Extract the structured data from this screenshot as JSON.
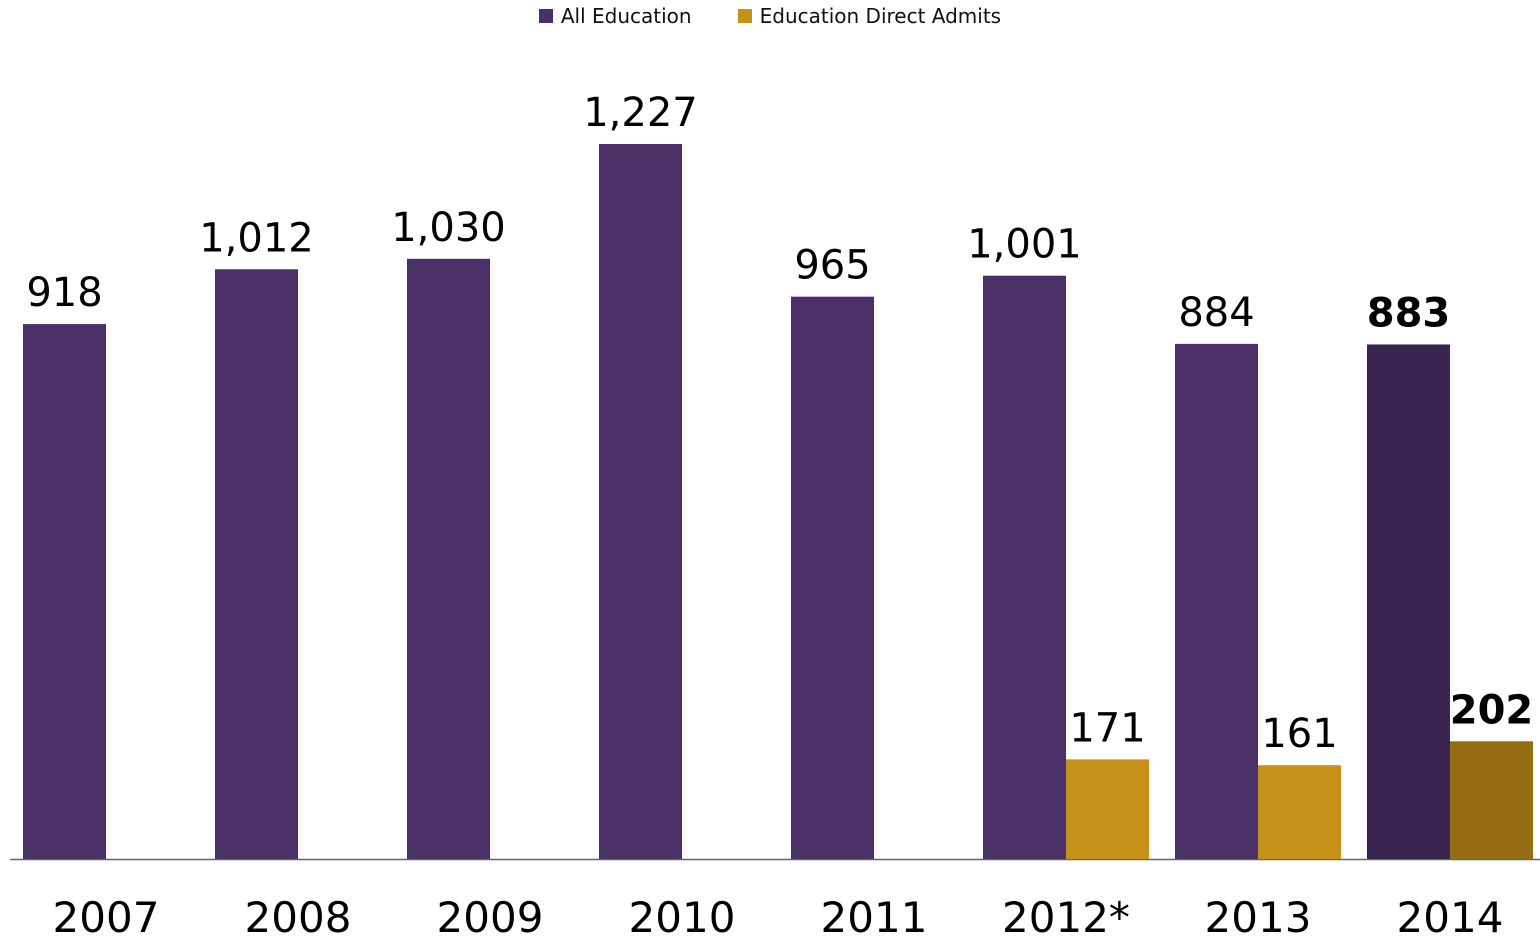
{
  "legend": {
    "all_label": "All Education",
    "direct_label": "Education Direct Admits"
  },
  "colors": {
    "all": "#4b3068",
    "all_highlight": "#3a2450",
    "direct": "#c69219",
    "direct_highlight": "#966d14",
    "axis": "#666666"
  },
  "chart_data": {
    "type": "bar",
    "categories": [
      "2007",
      "2008",
      "2009",
      "2010",
      "2011",
      "2012*",
      "2013",
      "2014"
    ],
    "series": [
      {
        "name": "All Education",
        "values": [
          918,
          1012,
          1030,
          1227,
          965,
          1001,
          884,
          883
        ],
        "labels": [
          "918",
          "1,012",
          "1,030",
          "1,227",
          "965",
          "1,001",
          "884",
          "883"
        ]
      },
      {
        "name": "Education Direct Admits",
        "values": [
          null,
          null,
          null,
          null,
          null,
          171,
          161,
          202
        ],
        "labels": [
          "",
          "",
          "",
          "",
          "",
          "171",
          "161",
          "202"
        ]
      }
    ],
    "highlight_category": "2014",
    "ylim": [
      0,
      1227
    ],
    "legend_position": "top-center",
    "grid": false
  }
}
